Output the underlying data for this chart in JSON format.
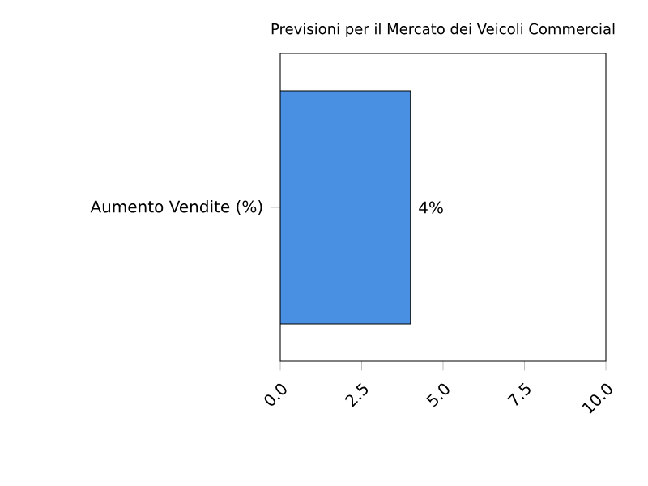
{
  "chart_data": {
    "type": "bar",
    "orientation": "horizontal",
    "title": "Previsioni per il Mercato dei Veicoli Commercial",
    "categories": [
      "Aumento Vendite (%)"
    ],
    "values": [
      4
    ],
    "value_labels": [
      "4%"
    ],
    "color": "#4a90e2",
    "xlim": [
      0,
      10
    ],
    "xticks": [
      {
        "value": 0,
        "label": "0.0"
      },
      {
        "value": 2.5,
        "label": "2.5"
      },
      {
        "value": 5,
        "label": "5.0"
      },
      {
        "value": 7.5,
        "label": "7.5"
      },
      {
        "value": 10,
        "label": "10.0"
      }
    ]
  }
}
